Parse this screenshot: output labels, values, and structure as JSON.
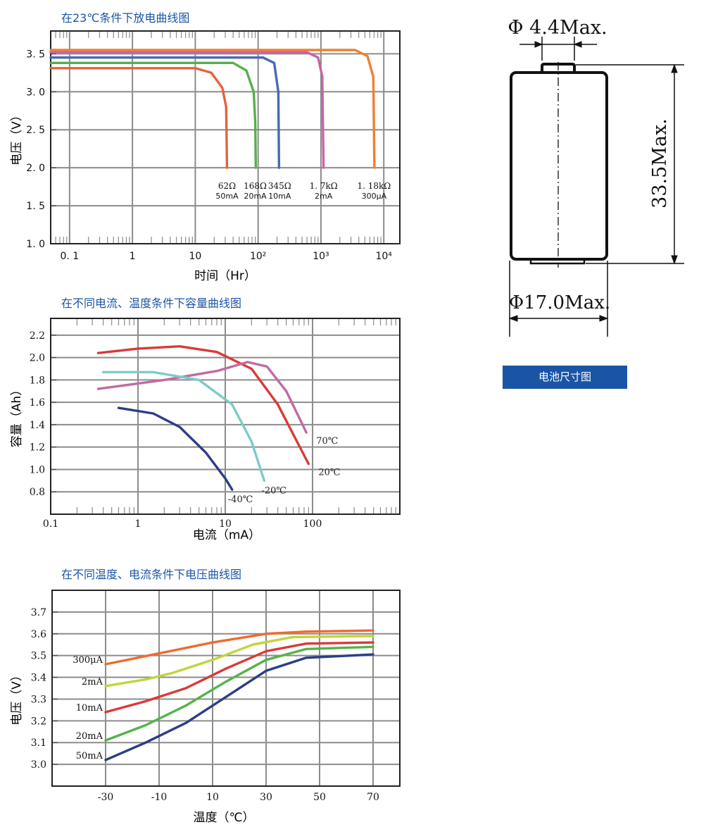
{
  "colors": {
    "grid": "#8c8c8c",
    "title_blue": "#1a55a5",
    "badge_bg": "#1a55a5"
  },
  "dimension_drawing": {
    "badge": "电池尺寸图",
    "pin_dia": "Φ 4.4Max.",
    "height": "33.5Max.",
    "body_dia": "Φ17.0Max."
  },
  "chart_data": [
    {
      "type": "line",
      "title": "在23℃条件下放电曲线图",
      "xlabel": "时间（Hr）",
      "ylabel": "电压（V）",
      "x_scale": "log",
      "xlim": [
        0.05,
        18000
      ],
      "ylim": [
        1.0,
        3.8
      ],
      "x_ticks": [
        {
          "v": 0.1,
          "label": "0. 1"
        },
        {
          "v": 1,
          "label": "1"
        },
        {
          "v": 10,
          "label": "10"
        },
        {
          "v": 100,
          "label": "10²"
        },
        {
          "v": 1000,
          "label": "10³"
        },
        {
          "v": 10000,
          "label": "10⁴"
        }
      ],
      "y_ticks": [
        {
          "v": 1.0,
          "label": "1. 0"
        },
        {
          "v": 1.5,
          "label": "1. 5"
        },
        {
          "v": 2.0,
          "label": "2. 0"
        },
        {
          "v": 2.5,
          "label": "2. 5"
        },
        {
          "v": 3.0,
          "label": "3. 0"
        },
        {
          "v": 3.5,
          "label": "3. 5"
        }
      ],
      "grid": true,
      "series": [
        {
          "name": "62Ω 50mA",
          "color": "#e5633a",
          "points": [
            [
              0.05,
              3.31
            ],
            [
              10,
              3.31
            ],
            [
              18,
              3.25
            ],
            [
              27,
              3.05
            ],
            [
              31,
              2.8
            ],
            [
              32,
              2.0
            ]
          ]
        },
        {
          "name": "168Ω 20mA",
          "color": "#57b04a",
          "points": [
            [
              0.05,
              3.38
            ],
            [
              40,
              3.38
            ],
            [
              65,
              3.28
            ],
            [
              85,
              3.0
            ],
            [
              90,
              2.6
            ],
            [
              92,
              2.0
            ]
          ]
        },
        {
          "name": "345Ω 10mA",
          "color": "#4b68b5",
          "points": [
            [
              0.05,
              3.45
            ],
            [
              120,
              3.45
            ],
            [
              180,
              3.38
            ],
            [
              210,
              3.0
            ],
            [
              215,
              2.0
            ]
          ]
        },
        {
          "name": "1. 7kΩ 2mA",
          "color": "#c763a8",
          "points": [
            [
              0.05,
              3.52
            ],
            [
              600,
              3.52
            ],
            [
              900,
              3.45
            ],
            [
              1050,
              3.2
            ],
            [
              1100,
              2.0
            ]
          ]
        },
        {
          "name": "1. 18kΩ 300μA",
          "color": "#ee8032",
          "points": [
            [
              0.05,
              3.55
            ],
            [
              1500,
              3.55
            ],
            [
              3500,
              3.55
            ],
            [
              5500,
              3.47
            ],
            [
              6800,
              3.2
            ],
            [
              7100,
              2.0
            ]
          ]
        }
      ],
      "annotations": [
        {
          "v": 32,
          "r": "62Ω",
          "c": "50mA"
        },
        {
          "v": 90,
          "r": "168Ω",
          "c": "20mA"
        },
        {
          "v": 220,
          "r": "345Ω",
          "c": "10mA"
        },
        {
          "v": 1100,
          "r": "1. 7kΩ",
          "c": "2mA"
        },
        {
          "v": 7000,
          "r": "1. 18kΩ",
          "c": "300μA"
        }
      ]
    },
    {
      "type": "line",
      "title": "在不同电流、温度条件下容量曲线图",
      "xlabel": "电流（mA）",
      "ylabel": "容量（Ah）",
      "x_scale": "log",
      "xlim": [
        0.1,
        1000
      ],
      "ylim": [
        0.6,
        2.35
      ],
      "x_ticks": [
        {
          "v": 0.1,
          "label": "0.1"
        },
        {
          "v": 1,
          "label": "1"
        },
        {
          "v": 10,
          "label": "10"
        },
        {
          "v": 100,
          "label": "100"
        }
      ],
      "y_ticks": [
        {
          "v": 0.8,
          "label": "0.8"
        },
        {
          "v": 1.0,
          "label": "1.0"
        },
        {
          "v": 1.2,
          "label": "1.2"
        },
        {
          "v": 1.4,
          "label": "1.4"
        },
        {
          "v": 1.6,
          "label": "1.6"
        },
        {
          "v": 1.8,
          "label": "1.8"
        },
        {
          "v": 2.0,
          "label": "2.0"
        },
        {
          "v": 2.2,
          "label": "2.2"
        }
      ],
      "grid": true,
      "series": [
        {
          "name": "20℃",
          "color": "#d93a3a",
          "points": [
            [
              0.35,
              2.04
            ],
            [
              1,
              2.08
            ],
            [
              3,
              2.1
            ],
            [
              8,
              2.05
            ],
            [
              20,
              1.9
            ],
            [
              40,
              1.58
            ],
            [
              90,
              1.05
            ]
          ]
        },
        {
          "name": "70℃",
          "color": "#c06ba3",
          "points": [
            [
              0.35,
              1.72
            ],
            [
              2,
              1.8
            ],
            [
              8,
              1.88
            ],
            [
              18,
              1.96
            ],
            [
              30,
              1.92
            ],
            [
              50,
              1.7
            ],
            [
              85,
              1.33
            ]
          ]
        },
        {
          "name": "-20℃",
          "color": "#7dcbc8",
          "points": [
            [
              0.4,
              1.87
            ],
            [
              1.5,
              1.87
            ],
            [
              5,
              1.8
            ],
            [
              12,
              1.58
            ],
            [
              20,
              1.25
            ],
            [
              28,
              0.9
            ]
          ]
        },
        {
          "name": "-40℃",
          "color": "#2c3e86",
          "points": [
            [
              0.6,
              1.55
            ],
            [
              1.5,
              1.5
            ],
            [
              3,
              1.38
            ],
            [
              6,
              1.15
            ],
            [
              10,
              0.92
            ],
            [
              12,
              0.82
            ]
          ]
        }
      ]
    },
    {
      "type": "line",
      "title": "在不同温度、电流条件下电压曲线图",
      "xlabel": "温度（℃）",
      "ylabel": "电压（V）",
      "xlim": [
        -50,
        80
      ],
      "ylim": [
        2.9,
        3.8
      ],
      "x_ticks": [
        {
          "v": -30,
          "label": "-30"
        },
        {
          "v": -10,
          "label": "-10"
        },
        {
          "v": 10,
          "label": "10"
        },
        {
          "v": 30,
          "label": "30"
        },
        {
          "v": 50,
          "label": "50"
        },
        {
          "v": 70,
          "label": "70"
        }
      ],
      "y_ticks": [
        {
          "v": 3.0,
          "label": "3.0"
        },
        {
          "v": 3.1,
          "label": "3.1"
        },
        {
          "v": 3.2,
          "label": "3.2"
        },
        {
          "v": 3.3,
          "label": "3.3"
        },
        {
          "v": 3.4,
          "label": "3.4"
        },
        {
          "v": 3.5,
          "label": "3.5"
        },
        {
          "v": 3.6,
          "label": "3.6"
        },
        {
          "v": 3.7,
          "label": "3.7"
        }
      ],
      "grid": true,
      "series": [
        {
          "name": "300μA",
          "color": "#ee6b2e",
          "points": [
            [
              -30,
              3.46
            ],
            [
              -10,
              3.51
            ],
            [
              10,
              3.56
            ],
            [
              30,
              3.6
            ],
            [
              45,
              3.61
            ],
            [
              70,
              3.615
            ]
          ]
        },
        {
          "name": "2mA",
          "color": "#c2d43a",
          "points": [
            [
              -30,
              3.36
            ],
            [
              -15,
              3.39
            ],
            [
              -5,
              3.42
            ],
            [
              10,
              3.48
            ],
            [
              25,
              3.55
            ],
            [
              40,
              3.585
            ],
            [
              70,
              3.59
            ]
          ]
        },
        {
          "name": "10mA",
          "color": "#d93a3a",
          "points": [
            [
              -30,
              3.24
            ],
            [
              -15,
              3.29
            ],
            [
              0,
              3.35
            ],
            [
              15,
              3.44
            ],
            [
              30,
              3.52
            ],
            [
              45,
              3.555
            ],
            [
              70,
              3.56
            ]
          ]
        },
        {
          "name": "20mA",
          "color": "#52b44a",
          "points": [
            [
              -30,
              3.11
            ],
            [
              -15,
              3.18
            ],
            [
              0,
              3.27
            ],
            [
              15,
              3.38
            ],
            [
              30,
              3.48
            ],
            [
              45,
              3.53
            ],
            [
              70,
              3.54
            ]
          ]
        },
        {
          "name": "50mA",
          "color": "#2c3e86",
          "points": [
            [
              -30,
              3.02
            ],
            [
              -15,
              3.1
            ],
            [
              0,
              3.19
            ],
            [
              15,
              3.31
            ],
            [
              30,
              3.43
            ],
            [
              45,
              3.49
            ],
            [
              70,
              3.505
            ]
          ]
        }
      ]
    }
  ]
}
